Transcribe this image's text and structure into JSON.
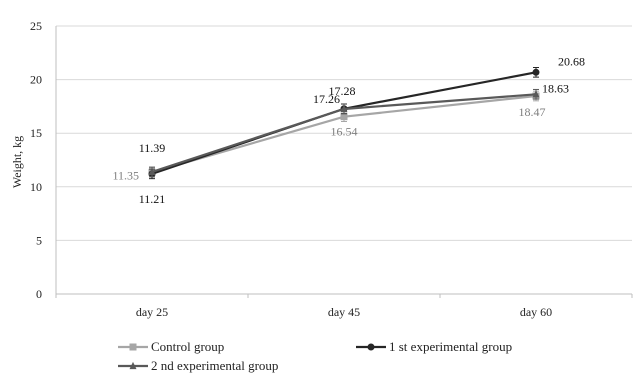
{
  "chart_data": {
    "type": "line",
    "title": "",
    "xlabel": "",
    "ylabel": "Weight, kg",
    "ylim": [
      0,
      25
    ],
    "yticks": [
      0,
      5,
      10,
      15,
      20,
      25
    ],
    "categories": [
      "day 25",
      "day 45",
      "day 60"
    ],
    "grid": true,
    "legend_position": "bottom",
    "series": [
      {
        "name": "Control group",
        "values": [
          11.35,
          16.54,
          18.47
        ],
        "labels": [
          "11.35",
          "16.54",
          "18.47"
        ],
        "color": "#a6a6a6",
        "label_color": "#7f7f7f",
        "marker": "square"
      },
      {
        "name": "1 st experimental group",
        "values": [
          11.21,
          17.28,
          20.68
        ],
        "labels": [
          "11.21",
          "17.28",
          "20.68"
        ],
        "color": "#262626",
        "label_color": "#111111",
        "marker": "circle"
      },
      {
        "name": "2 nd experimental group",
        "values": [
          11.39,
          17.26,
          18.63
        ],
        "labels": [
          "11.39",
          "17.26",
          "18.63"
        ],
        "color": "#595959",
        "label_color": "#111111",
        "marker": "triangle"
      }
    ]
  }
}
